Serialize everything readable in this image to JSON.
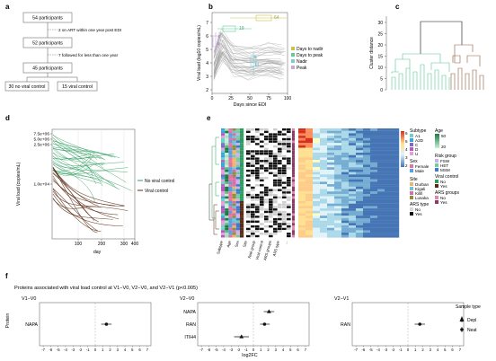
{
  "panels": {
    "a": "a",
    "b": "b",
    "c": "c",
    "d": "d",
    "e": "e",
    "f": "f"
  },
  "flow": {
    "box1": "54 participants",
    "ex1": "2 on ART within one year post EDI",
    "box2": "52 participants",
    "ex2": "7 followed for less than one year",
    "box3": "45 participants",
    "box4": "30 no viral control",
    "box5": "15 viral control"
  },
  "chart_b": {
    "ylabel": "Viral load (log10 copies/mL)",
    "xlabel": "Days since EDI",
    "xticks": [
      "0",
      "25",
      "50",
      "75",
      "100"
    ],
    "yticks": [
      "2",
      "3",
      "4",
      "5",
      "6",
      "7"
    ],
    "ann": {
      "a": "64",
      "b": "19",
      "c": "8",
      "d": "6",
      "e": "8",
      "f": "14"
    },
    "legend": [
      "Days to nadir",
      "Days to peak",
      "Nadir",
      "Peak"
    ],
    "colors": {
      "nadir_days": "#c9c34a",
      "peak_days": "#5fcf9a",
      "nadir": "#7ec8d8",
      "peak": "#c9a9d9"
    }
  },
  "chart_c": {
    "ylabel": "Cluster distance",
    "yticks": [
      "0",
      "5",
      "10",
      "15",
      "20",
      "25",
      "30"
    ]
  },
  "chart_d": {
    "ylabel": "Viral load (copies/mL)",
    "xlabel": "day",
    "yticks": [
      "7.5e+06",
      "5.0e+06",
      "2.5e+06",
      "1.0e+04"
    ],
    "xticks": [
      "100",
      "200",
      "300",
      "400"
    ],
    "legend": [
      "No viral control",
      "Viral control"
    ],
    "colors": {
      "no": "#2e9c5f",
      "yes": "#5a2a12"
    }
  },
  "heat_e": {
    "col_labels": [
      "Subtype",
      "Age",
      "Sex",
      "Site",
      "Risk group",
      "Viral control",
      "ARS groups",
      "ARS type",
      "..."
    ],
    "legend": {
      "subtype": {
        "title": "Subtype",
        "items": [
          "A1",
          "A2D",
          "C",
          "D",
          "U"
        ]
      },
      "age": {
        "title": "Age",
        "items": [
          "50",
          "20"
        ]
      },
      "sex": {
        "title": "Sex",
        "items": [
          "Female",
          "Male"
        ]
      },
      "risk": {
        "title": "Risk group",
        "items": [
          "FSW",
          "HET",
          "MSM"
        ]
      },
      "site": {
        "title": "Site",
        "items": [
          "Durban",
          "Kigali",
          "Kilifi",
          "Lusaka"
        ]
      },
      "vc": {
        "title": "Viral control",
        "items": [
          "No",
          "Yes"
        ]
      },
      "arsg": {
        "title": "ARS groups",
        "items": [
          "No",
          "Yes"
        ]
      },
      "arst": {
        "title": "ARS type",
        "items": [
          "No",
          "Yes"
        ]
      }
    },
    "scale": [
      "6",
      "5",
      "4",
      "3",
      "2"
    ]
  },
  "forest_f": {
    "title": "Proteins associated with viral load control at V1−V0, V2−V0, and V2−V1 (p<0.005)",
    "ylabel": "Protein",
    "xlabel": "log2FC",
    "xticks": [
      "-7",
      "-6",
      "-5",
      "-4",
      "-3",
      "-2",
      "-1",
      "0",
      "1",
      "2",
      "3",
      "4",
      "5",
      "6",
      "7"
    ],
    "panels": [
      {
        "title": "V1−V0",
        "proteins": [
          {
            "name": "NAPA",
            "est": 1.5,
            "lo": 0.8,
            "hi": 2.2,
            "type": "Neat"
          }
        ]
      },
      {
        "title": "V2−V0",
        "proteins": [
          {
            "name": "NAPA",
            "est": 2.1,
            "lo": 1.4,
            "hi": 2.8,
            "type": "Depl"
          },
          {
            "name": "RAN",
            "est": 1.5,
            "lo": 0.9,
            "hi": 2.2,
            "type": "Neat"
          },
          {
            "name": "ITIH4",
            "est": -1.6,
            "lo": -2.6,
            "hi": -0.6,
            "type": "Depl"
          }
        ]
      },
      {
        "title": "V2−V1",
        "proteins": [
          {
            "name": "RAN",
            "est": 1.6,
            "lo": 0.9,
            "hi": 2.3,
            "type": "Neat"
          }
        ]
      }
    ],
    "legend": {
      "title": "Sample type",
      "items": [
        "Depl",
        "Neat"
      ]
    }
  }
}
